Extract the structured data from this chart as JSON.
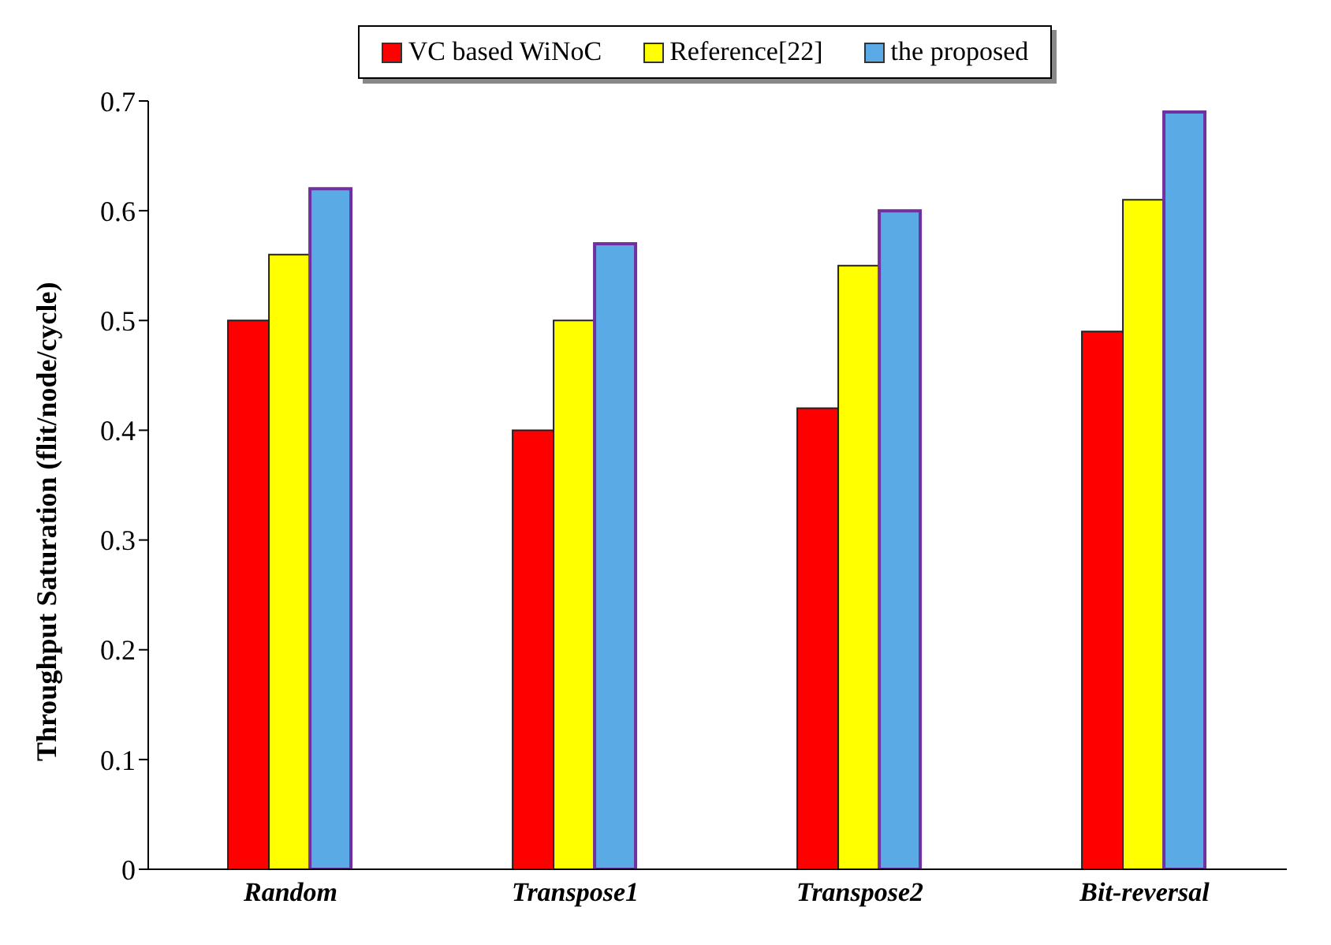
{
  "chart_data": {
    "type": "bar",
    "ylabel": "Throughput  Saturation (flit/node/cycle)",
    "categories": [
      "Random",
      "Transpose1",
      "Transpose2",
      "Bit-reversal"
    ],
    "series": [
      {
        "name": "VC based WiNoC",
        "color": "#ff0000",
        "values": [
          0.5,
          0.4,
          0.42,
          0.49
        ]
      },
      {
        "name": "Reference[22]",
        "color": "#ffff00",
        "values": [
          0.56,
          0.5,
          0.55,
          0.61
        ]
      },
      {
        "name": "the proposed",
        "color": "#5aaae6",
        "values": [
          0.62,
          0.57,
          0.6,
          0.69
        ]
      }
    ],
    "ylim": [
      0,
      0.7
    ],
    "yticks": [
      0,
      0.1,
      0.2,
      0.3,
      0.4,
      0.5,
      0.6,
      0.7
    ],
    "grid": false,
    "legend": "top"
  }
}
